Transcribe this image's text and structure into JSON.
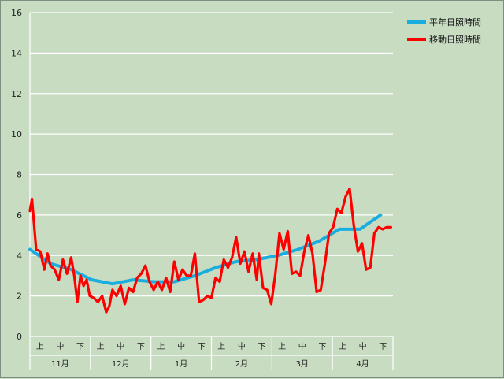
{
  "chart_data": {
    "type": "line",
    "title": "",
    "xlabel": "",
    "ylabel": "",
    "ylim": [
      0,
      16
    ],
    "yticks": [
      0,
      2,
      4,
      6,
      8,
      10,
      12,
      14,
      16
    ],
    "grid": true,
    "legend_position": "top-right",
    "sub_categories": [
      "上",
      "中",
      "下",
      "上",
      "中",
      "下",
      "上",
      "中",
      "下",
      "上",
      "中",
      "下",
      "上",
      "中",
      "下",
      "上",
      "中",
      "下"
    ],
    "months": [
      "11月",
      "12月",
      "1月",
      "2月",
      "3月",
      "4月"
    ],
    "series": [
      {
        "name": "平年日照時間",
        "color": "#1aaee0",
        "x": [
          0,
          1,
          2,
          3,
          4,
          5,
          6,
          7,
          8,
          9,
          10,
          11,
          12,
          13,
          14,
          15,
          16,
          17
        ],
        "values": [
          4.3,
          3.6,
          3.3,
          2.8,
          2.6,
          2.8,
          2.7,
          2.7,
          3.0,
          3.4,
          3.7,
          3.8,
          4.0,
          4.3,
          4.7,
          5.3,
          5.3,
          6.0
        ]
      },
      {
        "name": "移動日照時間",
        "color": "#ff0000",
        "x": [
          0,
          0.1,
          0.3,
          0.5,
          0.7,
          0.85,
          1.0,
          1.2,
          1.4,
          1.6,
          1.8,
          2.0,
          2.15,
          2.3,
          2.45,
          2.6,
          2.75,
          2.9,
          3.1,
          3.3,
          3.5,
          3.7,
          3.85,
          4.0,
          4.2,
          4.4,
          4.6,
          4.8,
          5.0,
          5.2,
          5.4,
          5.6,
          5.8,
          6.0,
          6.2,
          6.4,
          6.6,
          6.8,
          7.0,
          7.2,
          7.4,
          7.6,
          7.8,
          8.0,
          8.2,
          8.4,
          8.6,
          8.8,
          9.0,
          9.2,
          9.4,
          9.6,
          9.8,
          10.0,
          10.2,
          10.4,
          10.6,
          10.8,
          11.0,
          11.1,
          11.3,
          11.5,
          11.7,
          11.9,
          12.1,
          12.3,
          12.5,
          12.7,
          12.9,
          13.1,
          13.3,
          13.5,
          13.7,
          13.9,
          14.1,
          14.3,
          14.5,
          14.7,
          14.9,
          15.1,
          15.3,
          15.5,
          15.7,
          15.9,
          16.1,
          16.3,
          16.5,
          16.7,
          16.9,
          17.1,
          17.3,
          17.5
        ],
        "values": [
          6.2,
          6.8,
          4.3,
          4.2,
          3.3,
          4.1,
          3.5,
          3.3,
          2.8,
          3.8,
          3.1,
          3.9,
          3.0,
          1.7,
          3.0,
          2.5,
          2.8,
          2.0,
          1.9,
          1.7,
          2.0,
          1.2,
          1.5,
          2.3,
          2.0,
          2.5,
          1.6,
          2.4,
          2.2,
          2.9,
          3.1,
          3.5,
          2.7,
          2.3,
          2.7,
          2.3,
          2.9,
          2.2,
          3.7,
          2.8,
          3.3,
          3.0,
          3.0,
          4.1,
          1.7,
          1.8,
          2.0,
          1.9,
          2.9,
          2.7,
          3.8,
          3.4,
          3.9,
          4.9,
          3.6,
          4.2,
          3.2,
          4.1,
          2.8,
          4.1,
          2.4,
          2.3,
          1.6,
          3.1,
          5.1,
          4.3,
          5.2,
          3.1,
          3.2,
          3.0,
          4.2,
          5.0,
          4.1,
          2.2,
          2.3,
          3.6,
          5.1,
          5.4,
          6.3,
          6.1,
          6.9,
          7.3,
          5.5,
          4.2,
          4.6,
          3.3,
          3.4,
          5.1,
          5.4,
          5.3,
          5.4,
          5.4
        ]
      }
    ]
  }
}
